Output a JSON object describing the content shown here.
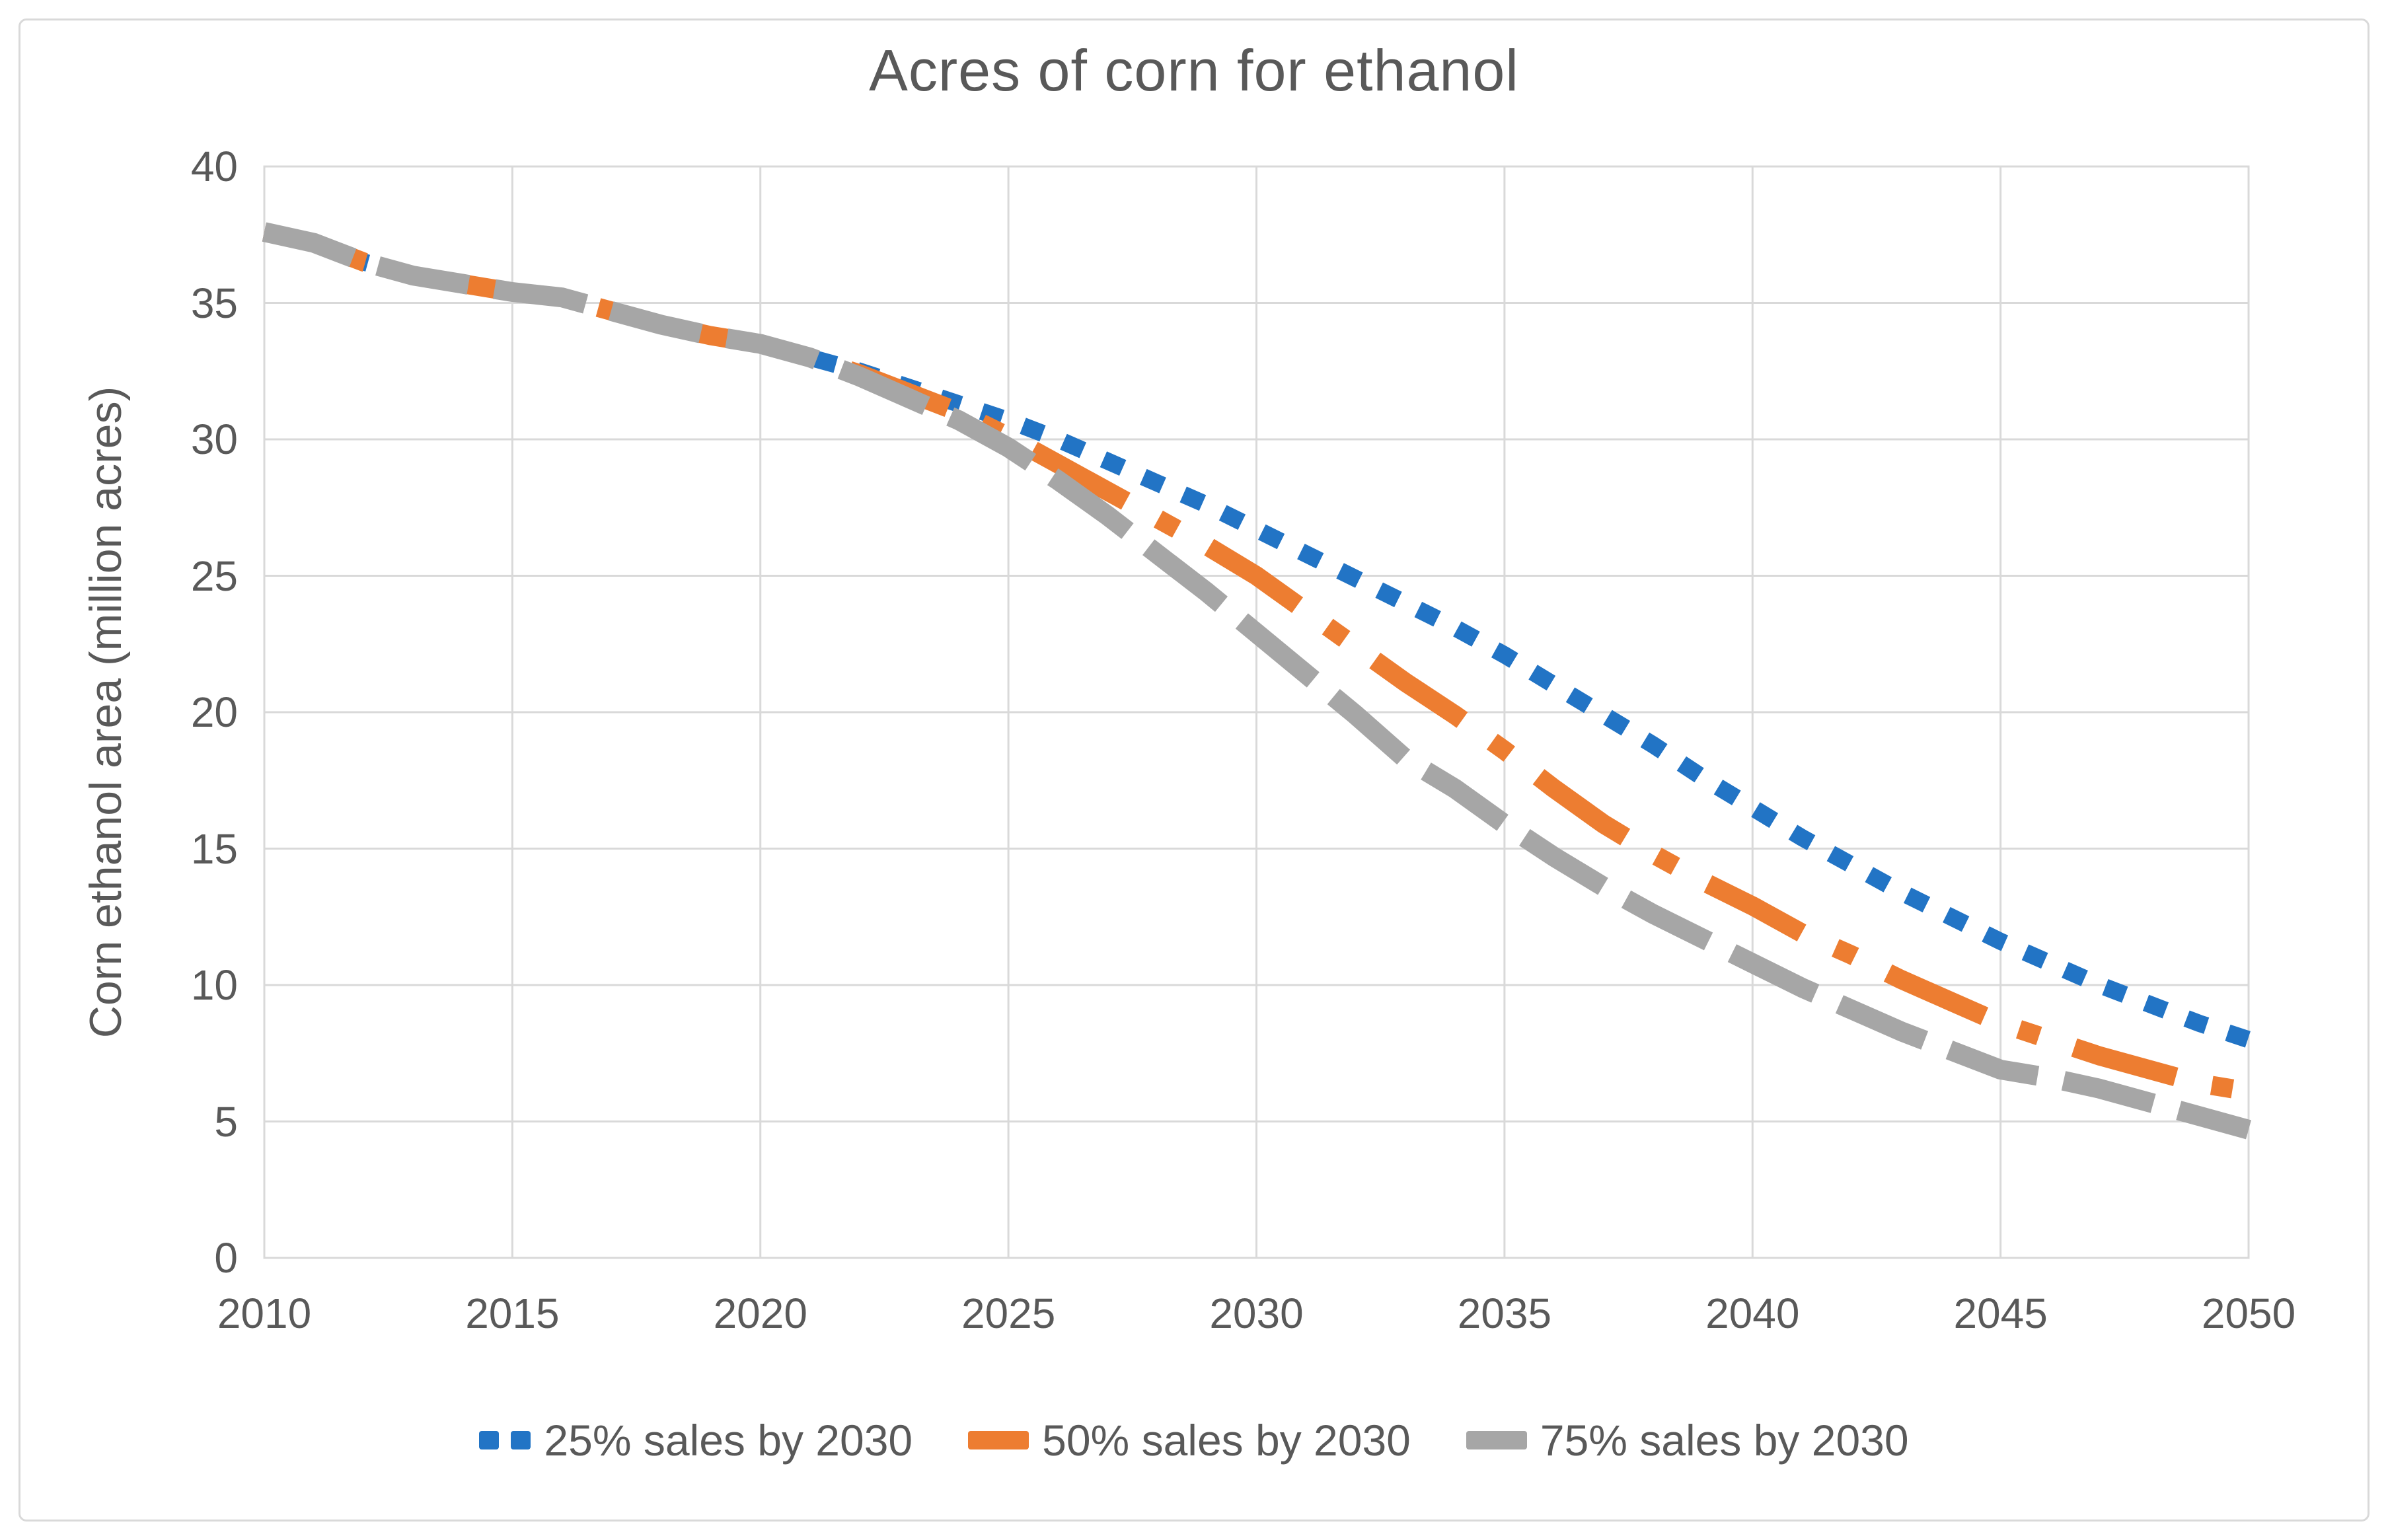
{
  "chart_data": {
    "type": "line",
    "title": "Acres of corn for ethanol",
    "ylabel": "Corn ethanol area (million acres)",
    "xlabel": "",
    "xlim": [
      2010,
      2050
    ],
    "ylim": [
      0,
      40
    ],
    "x_ticks": [
      2010,
      2015,
      2020,
      2025,
      2030,
      2035,
      2040,
      2045,
      2050
    ],
    "y_ticks": [
      0,
      5,
      10,
      15,
      20,
      25,
      30,
      35,
      40
    ],
    "grid": true,
    "legend_position": "bottom",
    "x": [
      2010,
      2011,
      2012,
      2013,
      2014,
      2015,
      2016,
      2017,
      2018,
      2019,
      2020,
      2021,
      2022,
      2023,
      2024,
      2025,
      2026,
      2027,
      2028,
      2029,
      2030,
      2031,
      2032,
      2033,
      2034,
      2035,
      2036,
      2037,
      2038,
      2039,
      2040,
      2041,
      2042,
      2043,
      2044,
      2045,
      2046,
      2047,
      2048,
      2049,
      2050
    ],
    "series": [
      {
        "name": "25% sales by 2030",
        "color": "#2274C5",
        "dash": "dotted",
        "values": [
          37.6,
          37.2,
          36.5,
          36.0,
          35.7,
          35.4,
          35.2,
          34.7,
          34.2,
          33.8,
          33.5,
          33.0,
          32.5,
          31.9,
          31.3,
          30.7,
          30.0,
          29.2,
          28.4,
          27.6,
          26.7,
          25.8,
          24.9,
          24.0,
          23.1,
          22.1,
          21.0,
          19.9,
          18.8,
          17.6,
          16.5,
          15.4,
          14.4,
          13.4,
          12.5,
          11.6,
          10.8,
          10.0,
          9.3,
          8.6,
          8.0
        ]
      },
      {
        "name": "50% sales by 2030",
        "color": "#ED7D31",
        "dash": "long-dash-dot",
        "values": [
          37.6,
          37.2,
          36.5,
          36.0,
          35.7,
          35.4,
          35.2,
          34.7,
          34.2,
          33.8,
          33.5,
          33.0,
          32.4,
          31.7,
          31.0,
          30.1,
          29.1,
          28.1,
          27.1,
          26.1,
          25.0,
          23.7,
          22.4,
          21.1,
          19.9,
          18.6,
          17.2,
          15.9,
          14.8,
          13.8,
          12.9,
          11.9,
          11.1,
          10.2,
          9.4,
          8.6,
          8.0,
          7.4,
          6.9,
          6.4,
          6.1
        ]
      },
      {
        "name": "75% sales by 2030",
        "color": "#A6A6A6",
        "dash": "long-dash",
        "values": [
          37.6,
          37.2,
          36.5,
          36.0,
          35.7,
          35.4,
          35.2,
          34.7,
          34.2,
          33.8,
          33.5,
          33.0,
          32.3,
          31.5,
          30.7,
          29.7,
          28.5,
          27.2,
          25.8,
          24.4,
          22.9,
          21.4,
          19.9,
          18.3,
          17.2,
          15.9,
          14.7,
          13.6,
          12.6,
          11.7,
          10.8,
          9.9,
          9.1,
          8.3,
          7.6,
          6.9,
          6.6,
          6.2,
          5.7,
          5.2,
          4.7
        ]
      }
    ]
  },
  "styles": {
    "text_color": "#595959",
    "grid_color": "#D9D9D9",
    "frame_border_color": "#D9D9D9",
    "background": "#FFFFFF"
  }
}
